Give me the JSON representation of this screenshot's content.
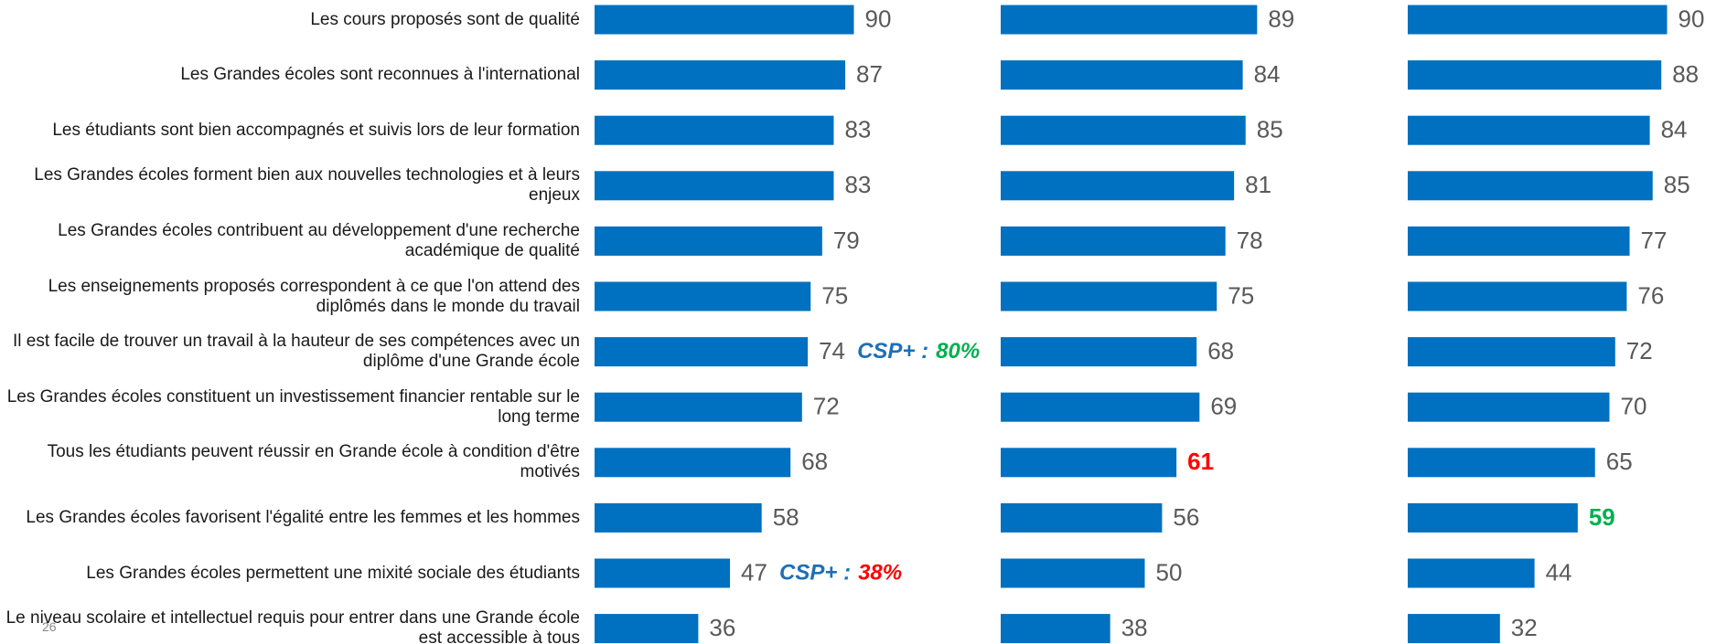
{
  "chart_data": {
    "type": "bar",
    "orientation": "horizontal",
    "categories": [
      "Les cours proposés sont de qualité",
      "Les Grandes écoles sont reconnues à l'international",
      "Les étudiants sont bien accompagnés et suivis lors de leur formation",
      "Les Grandes écoles forment bien aux nouvelles technologies et à leurs enjeux",
      "Les Grandes écoles contribuent au développement d'une recherche académique de qualité",
      "Les enseignements proposés correspondent à ce que l'on attend des diplômés dans le monde du travail",
      "Il est facile de trouver un travail à la hauteur de ses compétences avec un diplôme d'une Grande école",
      "Les Grandes écoles constituent un investissement financier rentable sur le long terme",
      "Tous les étudiants peuvent réussir en Grande école à condition d'être motivés",
      "Les Grandes écoles favorisent l'égalité entre les femmes et les hommes",
      "Les Grandes écoles permettent une mixité sociale des étudiants",
      "Le niveau scolaire et intellectuel requis pour entrer dans une Grande école est accessible à tous"
    ],
    "xlim": [
      0,
      100
    ],
    "series": [
      {
        "color": "#0070c0",
        "values": [
          90,
          87,
          83,
          83,
          79,
          75,
          74,
          72,
          68,
          58,
          47,
          36
        ],
        "annotations": [
          {
            "index": 6,
            "label": "CSP+ :",
            "value_label": "80%",
            "color": "#00b050"
          },
          {
            "index": 10,
            "label": "CSP+ :",
            "value_label": "38%",
            "color": "#ff0000"
          }
        ]
      },
      {
        "color": "#0070c0",
        "values": [
          89,
          84,
          85,
          81,
          78,
          75,
          68,
          69,
          61,
          56,
          50,
          38
        ],
        "highlights": [
          {
            "index": 8,
            "color": "#ff0000"
          }
        ]
      },
      {
        "color": "#0070c0",
        "values": [
          90,
          88,
          84,
          85,
          77,
          76,
          72,
          70,
          65,
          59,
          44,
          32
        ],
        "highlights": [
          {
            "index": 9,
            "color": "#00b050"
          }
        ]
      }
    ],
    "page_number": "26"
  }
}
